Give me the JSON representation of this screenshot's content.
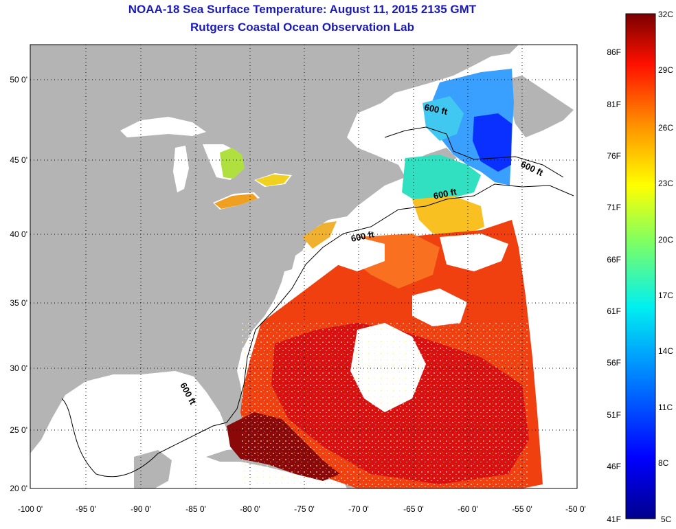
{
  "title": "NOAA-18 Sea Surface Temperature:  August 11, 2015 2135 GMT",
  "subtitle": "Rutgers Coastal Ocean Observation Lab",
  "lat_ticks": [
    "50 0'",
    "45 0'",
    "40 0'",
    "35 0'",
    "30 0'",
    "25 0'",
    "20 0'"
  ],
  "lon_ticks": [
    "-100 0'",
    "-95 0'",
    "-90 0'",
    "-85 0'",
    "-80 0'",
    "-75 0'",
    "-70 0'",
    "-65 0'",
    "-60 0'",
    "-55 0'",
    "-50 0'"
  ],
  "contour_label": "600 ft",
  "colorbar": {
    "celsius_labels": [
      "32C",
      "29C",
      "26C",
      "23C",
      "20C",
      "17C",
      "14C",
      "11C",
      "8C",
      "5C"
    ],
    "fahrenheit_labels": [
      "86F",
      "81F",
      "76F",
      "71F",
      "66F",
      "61F",
      "56F",
      "51F",
      "46F",
      "41F"
    ],
    "min_c": 5,
    "max_c": 32
  },
  "colors": {
    "title": "#1a1ab4",
    "land": "#b4b4b4",
    "ocean_nodata": "#ffffff",
    "grid": "#000000"
  }
}
